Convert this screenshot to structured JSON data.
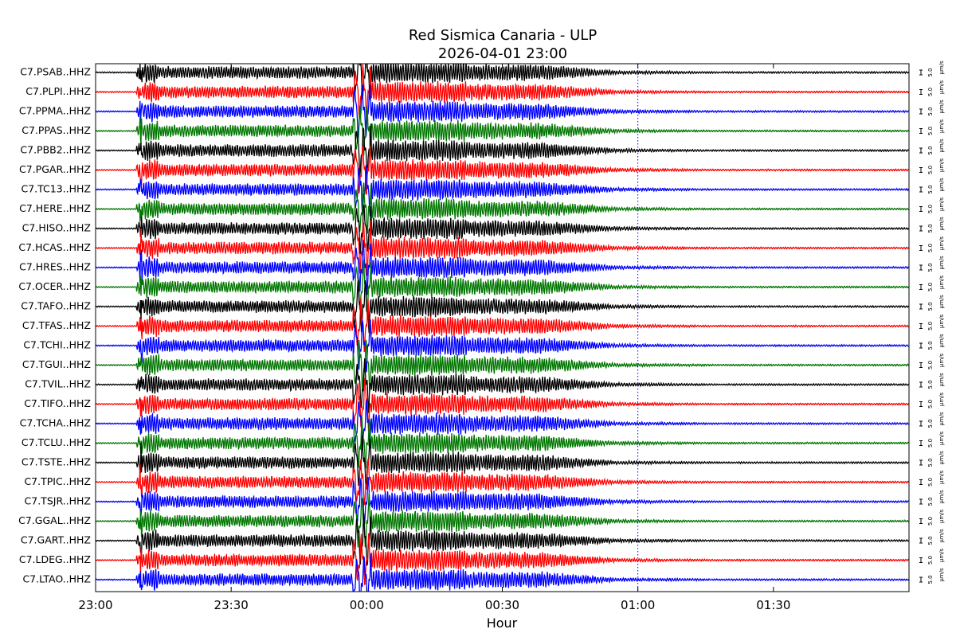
{
  "chart_data": {
    "type": "line",
    "title": "Red Sismica Canaria - ULP",
    "subtitle": "2026-04-01 23:00",
    "xlabel": "Hour",
    "x_tick_labels": [
      "23:00",
      "23:30",
      "00:00",
      "00:30",
      "01:00",
      "01:30"
    ],
    "x_tick_minutes": [
      0,
      30,
      60,
      90,
      120,
      150
    ],
    "xlim_minutes": [
      0,
      180
    ],
    "marker_line_minutes": 120,
    "scale_value": "5.0",
    "scale_unit": "µm/s",
    "colors": [
      "#000000",
      "#ff0000",
      "#0000ff",
      "#007700"
    ],
    "series": [
      {
        "name": "C7.PSAB..HHZ"
      },
      {
        "name": "C7.PLPI..HHZ"
      },
      {
        "name": "C7.PPMA..HHZ"
      },
      {
        "name": "C7.PPAS..HHZ"
      },
      {
        "name": "C7.PBB2..HHZ"
      },
      {
        "name": "C7.PGAR..HHZ"
      },
      {
        "name": "C7.TC13..HHZ"
      },
      {
        "name": "C7.HERE..HHZ"
      },
      {
        "name": "C7.HISO..HHZ"
      },
      {
        "name": "C7.HCAS..HHZ"
      },
      {
        "name": "C7.HRES..HHZ"
      },
      {
        "name": "C7.OCER..HHZ"
      },
      {
        "name": "C7.TAFO..HHZ"
      },
      {
        "name": "C7.TFAS..HHZ"
      },
      {
        "name": "C7.TCHI..HHZ"
      },
      {
        "name": "C7.TGUI..HHZ"
      },
      {
        "name": "C7.TVIL..HHZ"
      },
      {
        "name": "C7.TIFO..HHZ"
      },
      {
        "name": "C7.TCHA..HHZ"
      },
      {
        "name": "C7.TCLU..HHZ"
      },
      {
        "name": "C7.TSTE..HHZ"
      },
      {
        "name": "C7.TPIC..HHZ"
      },
      {
        "name": "C7.TSJR..HHZ"
      },
      {
        "name": "C7.GGAL..HHZ"
      },
      {
        "name": "C7.GART..HHZ"
      },
      {
        "name": "C7.LDEG..HHZ"
      },
      {
        "name": "C7.LTAO..HHZ"
      }
    ]
  }
}
